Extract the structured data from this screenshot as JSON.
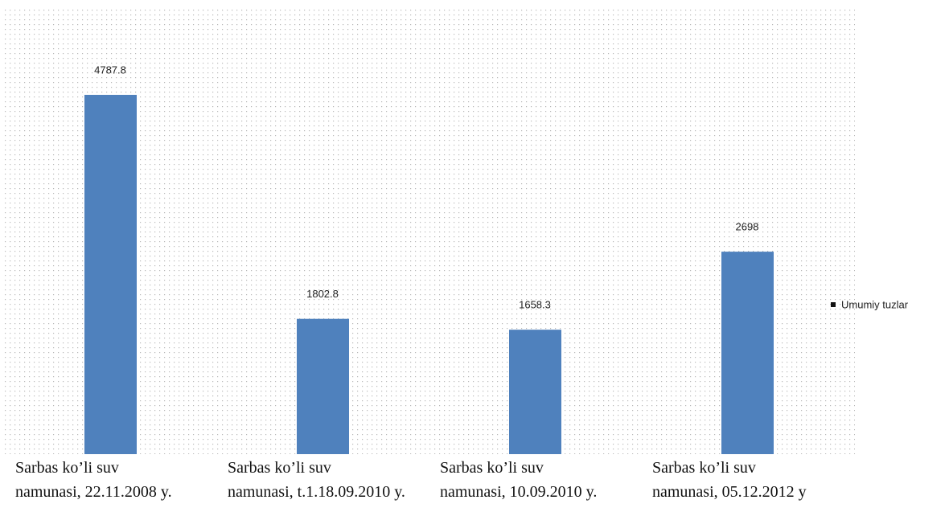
{
  "chart_data": {
    "type": "bar",
    "categories": [
      "Sarbas ko’li suv\nnamunasi, 22.11.2008 y.",
      "Sarbas ko’li suv\nnamunasi, t.1.18.09.2010 y.",
      "Sarbas ko’li suv\nnamunasi, 10.09.2010 y.",
      "Sarbas ko’li suv\nnamunasi, 05.12.2012 y"
    ],
    "series": [
      {
        "name": "Umumiy tuzlar",
        "color": "#4f81bd",
        "values": [
          4787.8,
          1802.8,
          1658.3,
          2698
        ]
      }
    ],
    "legend": "right"
  }
}
